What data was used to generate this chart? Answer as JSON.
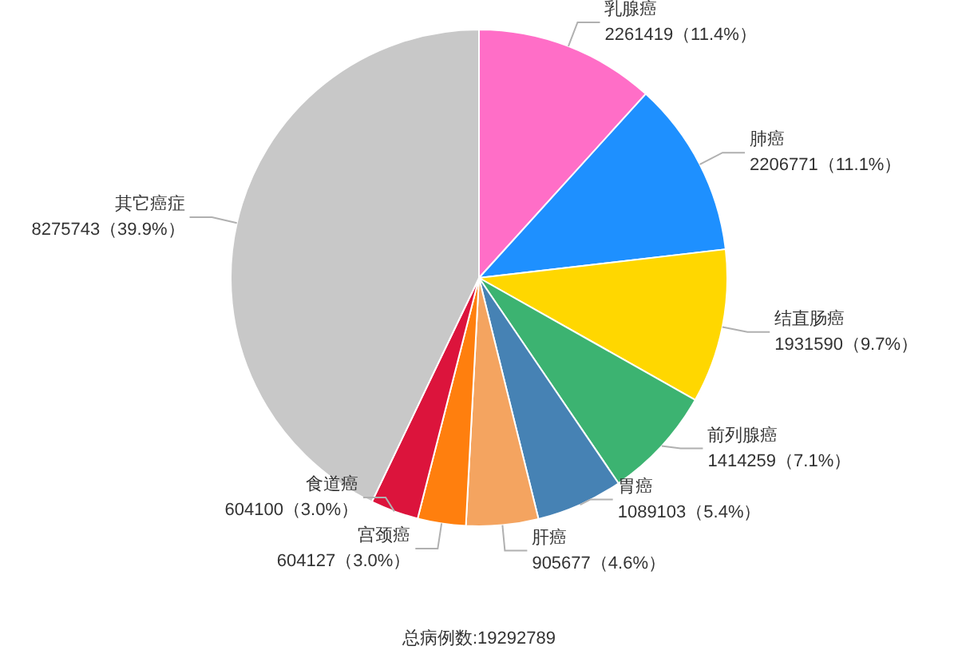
{
  "chart_data": {
    "type": "pie",
    "categories": [
      "乳腺癌",
      "肺癌",
      "结直肠癌",
      "前列腺癌",
      "胃癌",
      "肝癌",
      "宫颈癌",
      "食道癌",
      "其它癌症"
    ],
    "values": [
      2261419,
      2206771,
      1931590,
      1414259,
      1089103,
      905677,
      604127,
      604100,
      8275743
    ],
    "colors": [
      "#ff6ec7",
      "#1e90ff",
      "#ffd700",
      "#3cb371",
      "#4682b4",
      "#f4a460",
      "#ff7f0e",
      "#dc143c",
      "#c8c8c8"
    ],
    "value_labels": [
      "2261419（11.4%）",
      "2206771（11.1%）",
      "1931590（9.7%）",
      "1414259（7.1%）",
      "1089103（5.4%）",
      "905677（4.6%）",
      "604127（3.0%）",
      "604100（3.0%）",
      "8275743（39.9%）"
    ],
    "annotations": [
      "总病例数:19292789"
    ],
    "legend": false
  }
}
